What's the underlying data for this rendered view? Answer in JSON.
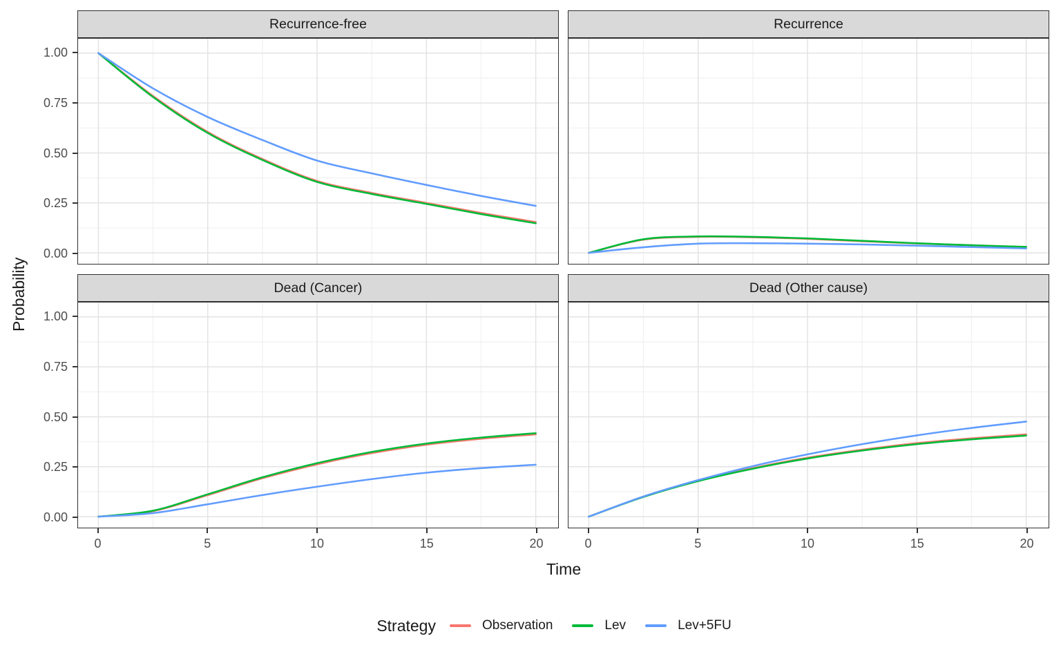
{
  "figure": {
    "y_axis_title": "Probability",
    "x_axis_title": "Time"
  },
  "axes": {
    "x": {
      "tick_labels": [
        "0",
        "5",
        "10",
        "15",
        "20"
      ],
      "tick_values": [
        0,
        5,
        10,
        15,
        20
      ],
      "minor_values": [
        2.5,
        7.5,
        12.5,
        17.5
      ],
      "range": [
        0,
        20
      ]
    },
    "y": {
      "tick_labels": [
        "1.00",
        "0.75",
        "0.50",
        "0.25",
        "0.00"
      ],
      "tick_values": [
        1.0,
        0.75,
        0.5,
        0.25,
        0.0
      ],
      "minor_values": [
        0.125,
        0.375,
        0.625,
        0.875
      ],
      "range": [
        0,
        1
      ]
    }
  },
  "legend": {
    "title": "Strategy",
    "items": [
      {
        "label": "Observation",
        "color": "#F8766D"
      },
      {
        "label": "Lev",
        "color": "#00BA38"
      },
      {
        "label": "Lev+5FU",
        "color": "#619CFF"
      }
    ]
  },
  "theme": {
    "strip_background": "#D9D9D9",
    "strip_border": "#2e2e2e",
    "panel_border": "#2e2e2e",
    "grid_major_color": "#E3E3E3",
    "grid_minor_color": "#F1F1F1",
    "tick_label_color": "#4d4d4d",
    "series_colors": {
      "Observation": "#F8766D",
      "Lev": "#00BA38",
      "Lev+5FU": "#619CFF"
    }
  },
  "chart_data": {
    "type": "line",
    "title": "",
    "xlabel": "Time",
    "ylabel": "Probability",
    "xlim": [
      0,
      20
    ],
    "ylim": [
      0,
      1
    ],
    "grid": "on",
    "legend_position": "bottom",
    "facet_layout": "2x2",
    "x": [
      0,
      2.5,
      5,
      7.5,
      10,
      12.5,
      15,
      17.5,
      20
    ],
    "panels": [
      {
        "title": "Recurrence-free",
        "series": [
          {
            "name": "Observation",
            "color": "#F8766D",
            "values": [
              1.0,
              0.785,
              0.605,
              0.47,
              0.36,
              0.3,
              0.25,
              0.2,
              0.154
            ]
          },
          {
            "name": "Lev",
            "color": "#00BA38",
            "values": [
              1.0,
              0.78,
              0.6,
              0.465,
              0.355,
              0.295,
              0.245,
              0.194,
              0.148
            ]
          },
          {
            "name": "Lev+5FU",
            "color": "#619CFF",
            "values": [
              1.0,
              0.823,
              0.68,
              0.565,
              0.462,
              0.398,
              0.34,
              0.285,
              0.235
            ]
          }
        ]
      },
      {
        "title": "Recurrence",
        "series": [
          {
            "name": "Observation",
            "color": "#F8766D",
            "values": [
              0,
              0.066,
              0.08,
              0.078,
              0.07,
              0.058,
              0.047,
              0.038,
              0.029
            ]
          },
          {
            "name": "Lev",
            "color": "#00BA38",
            "values": [
              0,
              0.068,
              0.082,
              0.08,
              0.072,
              0.06,
              0.048,
              0.038,
              0.03
            ]
          },
          {
            "name": "Lev+5FU",
            "color": "#619CFF",
            "values": [
              0,
              0.028,
              0.046,
              0.048,
              0.046,
              0.042,
              0.036,
              0.029,
              0.022
            ]
          }
        ]
      },
      {
        "title": "Dead (Cancer)",
        "series": [
          {
            "name": "Observation",
            "color": "#F8766D",
            "values": [
              0,
              0.028,
              0.108,
              0.192,
              0.262,
              0.318,
              0.36,
              0.39,
              0.412
            ]
          },
          {
            "name": "Lev",
            "color": "#00BA38",
            "values": [
              0,
              0.03,
              0.112,
              0.197,
              0.268,
              0.324,
              0.366,
              0.396,
              0.418
            ]
          },
          {
            "name": "Lev+5FU",
            "color": "#619CFF",
            "values": [
              0,
              0.018,
              0.062,
              0.108,
              0.15,
              0.188,
              0.22,
              0.243,
              0.26
            ]
          }
        ]
      },
      {
        "title": "Dead (Other cause)",
        "series": [
          {
            "name": "Observation",
            "color": "#F8766D",
            "values": [
              0,
              0.1,
              0.18,
              0.243,
              0.295,
              0.335,
              0.368,
              0.392,
              0.412
            ]
          },
          {
            "name": "Lev",
            "color": "#00BA38",
            "values": [
              0,
              0.099,
              0.178,
              0.24,
              0.291,
              0.331,
              0.363,
              0.387,
              0.406
            ]
          },
          {
            "name": "Lev+5FU",
            "color": "#619CFF",
            "values": [
              0,
              0.101,
              0.183,
              0.253,
              0.312,
              0.363,
              0.407,
              0.444,
              0.476
            ]
          }
        ]
      }
    ]
  }
}
